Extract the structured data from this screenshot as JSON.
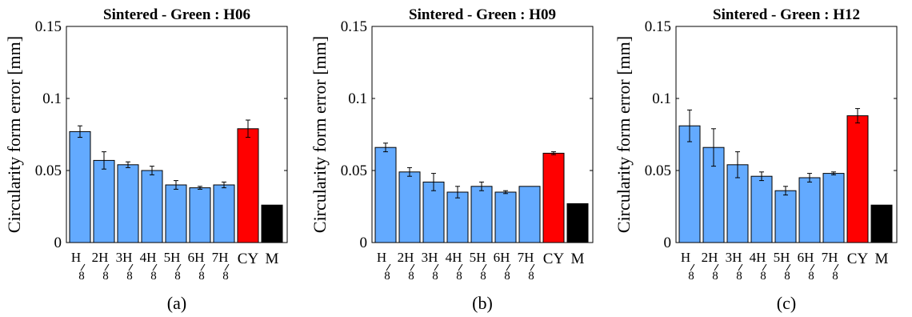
{
  "colors": {
    "blue": "#63aaff",
    "red": "#ff0000",
    "black": "#000000"
  },
  "category_labels": [
    {
      "num": "H",
      "den": "8"
    },
    {
      "num": "2H",
      "den": "8"
    },
    {
      "num": "3H",
      "den": "8"
    },
    {
      "num": "4H",
      "den": "8"
    },
    {
      "num": "5H",
      "den": "8"
    },
    {
      "num": "6H",
      "den": "8"
    },
    {
      "num": "7H",
      "den": "8"
    },
    {
      "num": "CY",
      "den": ""
    },
    {
      "num": "M",
      "den": ""
    }
  ],
  "chart_data": [
    {
      "type": "bar",
      "title": "Sintered - Green : H06",
      "subcaption": "(a)",
      "ylabel": "Circularity form error [mm]",
      "xlabel": "",
      "ylim": [
        0,
        0.15
      ],
      "yticks": [
        "0",
        "0.05",
        "0.1",
        "0.15"
      ],
      "categories": [
        "H/8",
        "2H/8",
        "3H/8",
        "4H/8",
        "5H/8",
        "6H/8",
        "7H/8",
        "CY",
        "M"
      ],
      "values": [
        0.077,
        0.057,
        0.054,
        0.05,
        0.04,
        0.038,
        0.04,
        0.079,
        0.026
      ],
      "errors": [
        0.004,
        0.006,
        0.002,
        0.003,
        0.003,
        0.001,
        0.002,
        0.006,
        0
      ],
      "bar_colors": [
        "blue",
        "blue",
        "blue",
        "blue",
        "blue",
        "blue",
        "blue",
        "red",
        "black"
      ]
    },
    {
      "type": "bar",
      "title": "Sintered - Green : H09",
      "subcaption": "(b)",
      "ylabel": "Circularity form error [mm]",
      "xlabel": "",
      "ylim": [
        0,
        0.15
      ],
      "yticks": [
        "0",
        "0.05",
        "0.1",
        "0.15"
      ],
      "categories": [
        "H/8",
        "2H/8",
        "3H/8",
        "4H/8",
        "5H/8",
        "6H/8",
        "7H/8",
        "CY",
        "M"
      ],
      "values": [
        0.066,
        0.049,
        0.042,
        0.035,
        0.039,
        0.035,
        0.039,
        0.062,
        0.027
      ],
      "errors": [
        0.003,
        0.003,
        0.006,
        0.004,
        0.003,
        0.001,
        0,
        0.001,
        0
      ],
      "bar_colors": [
        "blue",
        "blue",
        "blue",
        "blue",
        "blue",
        "blue",
        "blue",
        "red",
        "black"
      ]
    },
    {
      "type": "bar",
      "title": "Sintered - Green : H12",
      "subcaption": "(c)",
      "ylabel": "Circularity form error [mm]",
      "xlabel": "",
      "ylim": [
        0,
        0.15
      ],
      "yticks": [
        "0",
        "0.05",
        "0.1",
        "0.15"
      ],
      "categories": [
        "H/8",
        "2H/8",
        "3H/8",
        "4H/8",
        "5H/8",
        "6H/8",
        "7H/8",
        "CY",
        "M"
      ],
      "values": [
        0.081,
        0.066,
        0.054,
        0.046,
        0.036,
        0.045,
        0.048,
        0.088,
        0.026
      ],
      "errors": [
        0.011,
        0.013,
        0.009,
        0.003,
        0.003,
        0.003,
        0.001,
        0.005,
        0
      ],
      "bar_colors": [
        "blue",
        "blue",
        "blue",
        "blue",
        "blue",
        "blue",
        "blue",
        "red",
        "black"
      ]
    }
  ]
}
